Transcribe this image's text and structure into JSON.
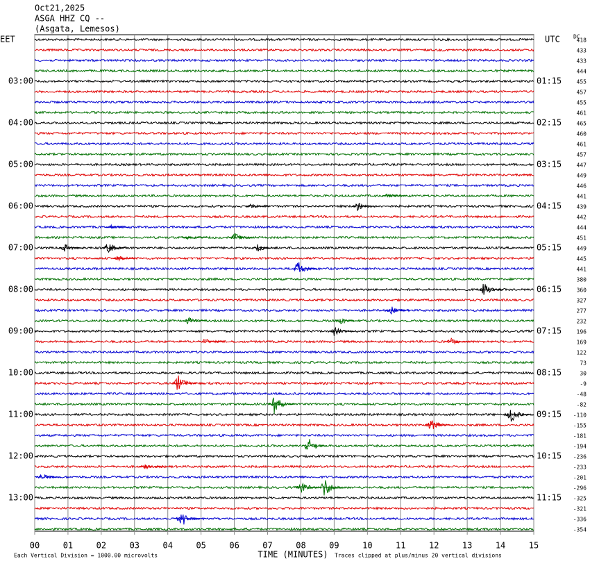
{
  "chart_data": {
    "type": "helicorder",
    "title_lines": [
      "Oct21,2025",
      "ASGA HHZ CQ --",
      "(Asgata, Lemesos)"
    ],
    "left_zone": "EET",
    "right_zone": "UTC",
    "dc_header": "DC",
    "xlabel": "TIME (MINUTES)",
    "scale_note": "Each Vertical Division = 1000.00 microvolts",
    "clip_note": "Traces clipped at plus/minus 20 vertical divisions",
    "xlim": [
      0,
      15
    ],
    "xticks": [
      {
        "value": 0,
        "label": "00"
      },
      {
        "value": 1,
        "label": "01"
      },
      {
        "value": 2,
        "label": "02"
      },
      {
        "value": 3,
        "label": "03"
      },
      {
        "value": 4,
        "label": "04"
      },
      {
        "value": 5,
        "label": "05"
      },
      {
        "value": 6,
        "label": "06"
      },
      {
        "value": 7,
        "label": "07"
      },
      {
        "value": 8,
        "label": "08"
      },
      {
        "value": 9,
        "label": "09"
      },
      10,
      11,
      12,
      13,
      14,
      15
    ],
    "colors": [
      "#000000",
      "#e00000",
      "#0000d0",
      "#007000"
    ],
    "left_labels": [
      null,
      null,
      null,
      null,
      "03:00",
      null,
      null,
      null,
      "04:00",
      null,
      null,
      null,
      "05:00",
      null,
      null,
      null,
      "06:00",
      null,
      null,
      null,
      "07:00",
      null,
      null,
      null,
      "08:00",
      null,
      null,
      null,
      "09:00",
      null,
      null,
      null,
      "10:00",
      null,
      null,
      null,
      "11:00",
      null,
      null,
      null,
      "12:00",
      null,
      null,
      null,
      "13:00",
      null,
      null,
      null
    ],
    "right_labels": [
      null,
      null,
      null,
      null,
      "01:15",
      null,
      null,
      null,
      "02:15",
      null,
      null,
      null,
      "03:15",
      null,
      null,
      null,
      "04:15",
      null,
      null,
      null,
      "05:15",
      null,
      null,
      null,
      "06:15",
      null,
      null,
      null,
      "07:15",
      null,
      null,
      null,
      "08:15",
      null,
      null,
      null,
      "09:15",
      null,
      null,
      null,
      "10:15",
      null,
      null,
      null,
      "11:15",
      null,
      null,
      null
    ],
    "dc_offsets": [
      418,
      433,
      433,
      444,
      455,
      457,
      455,
      461,
      465,
      460,
      461,
      457,
      447,
      449,
      446,
      441,
      439,
      442,
      444,
      451,
      449,
      445,
      441,
      380,
      360,
      327,
      277,
      232,
      196,
      169,
      122,
      73,
      30,
      -9,
      -48,
      -82,
      -110,
      -155,
      -181,
      -194,
      -236,
      -233,
      -201,
      -296,
      -325,
      -321,
      -336,
      -354
    ],
    "events": [
      {
        "row": 15,
        "minute": 10.6,
        "amplitude": 5
      },
      {
        "row": 16,
        "minute": 6.5,
        "amplitude": 4
      },
      {
        "row": 16,
        "minute": 9.7,
        "amplitude": 6
      },
      {
        "row": 18,
        "minute": 2.3,
        "amplitude": 3
      },
      {
        "row": 19,
        "minute": 6.0,
        "amplitude": 7
      },
      {
        "row": 19,
        "minute": 4.6,
        "amplitude": 3
      },
      {
        "row": 20,
        "minute": 0.9,
        "amplitude": 7
      },
      {
        "row": 20,
        "minute": 2.2,
        "amplitude": 10
      },
      {
        "row": 20,
        "minute": 6.7,
        "amplitude": 6
      },
      {
        "row": 21,
        "minute": 2.5,
        "amplitude": 4
      },
      {
        "row": 22,
        "minute": 7.9,
        "amplitude": 13
      },
      {
        "row": 24,
        "minute": 13.5,
        "amplitude": 12
      },
      {
        "row": 26,
        "minute": 10.7,
        "amplitude": 7
      },
      {
        "row": 27,
        "minute": 4.6,
        "amplitude": 6
      },
      {
        "row": 27,
        "minute": 9.2,
        "amplitude": 5
      },
      {
        "row": 28,
        "minute": 9.0,
        "amplitude": 7
      },
      {
        "row": 29,
        "minute": 5.1,
        "amplitude": 5
      },
      {
        "row": 29,
        "minute": 12.5,
        "amplitude": 6
      },
      {
        "row": 33,
        "minute": 4.3,
        "amplitude": 14
      },
      {
        "row": 35,
        "minute": 7.2,
        "amplitude": 15
      },
      {
        "row": 36,
        "minute": 14.3,
        "amplitude": 13
      },
      {
        "row": 37,
        "minute": 11.9,
        "amplitude": 10
      },
      {
        "row": 39,
        "minute": 8.2,
        "amplitude": 14
      },
      {
        "row": 41,
        "minute": 3.3,
        "amplitude": 4
      },
      {
        "row": 42,
        "minute": 0.2,
        "amplitude": 6
      },
      {
        "row": 43,
        "minute": 8.0,
        "amplitude": 11
      },
      {
        "row": 43,
        "minute": 8.7,
        "amplitude": 16
      },
      {
        "row": 46,
        "minute": 4.4,
        "amplitude": 14
      }
    ]
  }
}
